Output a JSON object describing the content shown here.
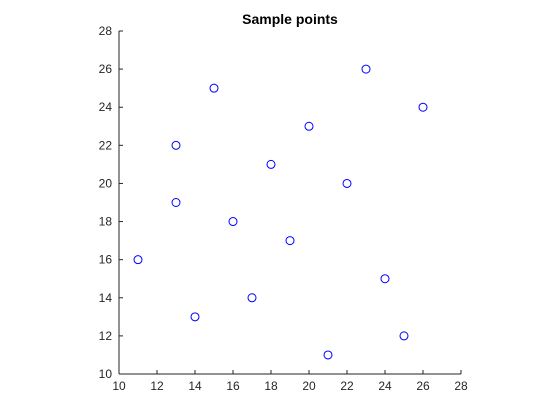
{
  "chart_data": {
    "type": "scatter",
    "title": "Sample points",
    "xlabel": "",
    "ylabel": "",
    "xlim": [
      10,
      28
    ],
    "ylim": [
      10,
      28
    ],
    "x_ticks": [
      10,
      12,
      14,
      16,
      18,
      20,
      22,
      24,
      26,
      28
    ],
    "y_ticks": [
      10,
      12,
      14,
      16,
      18,
      20,
      22,
      24,
      26,
      28
    ],
    "grid": false,
    "marker": "open-circle",
    "marker_color": "#0000ff",
    "axis_color": "#262626",
    "points": [
      {
        "x": 11,
        "y": 16
      },
      {
        "x": 13,
        "y": 22
      },
      {
        "x": 13,
        "y": 19
      },
      {
        "x": 14,
        "y": 13
      },
      {
        "x": 15,
        "y": 25
      },
      {
        "x": 16,
        "y": 18
      },
      {
        "x": 17,
        "y": 14
      },
      {
        "x": 18,
        "y": 21
      },
      {
        "x": 19,
        "y": 17
      },
      {
        "x": 20,
        "y": 23
      },
      {
        "x": 21,
        "y": 11
      },
      {
        "x": 22,
        "y": 20
      },
      {
        "x": 23,
        "y": 26
      },
      {
        "x": 24,
        "y": 15
      },
      {
        "x": 25,
        "y": 12
      },
      {
        "x": 26,
        "y": 24
      }
    ]
  }
}
